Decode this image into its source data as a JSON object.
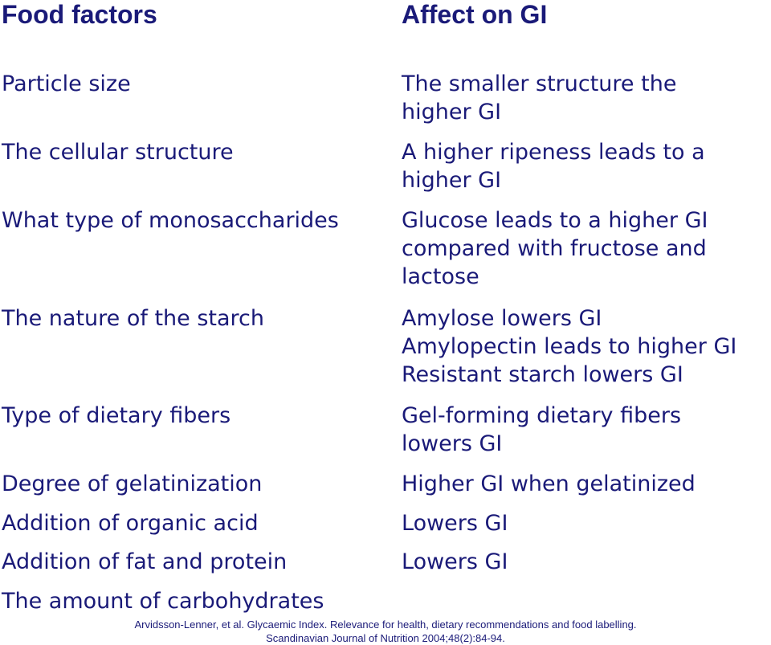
{
  "headers": {
    "left": "Food factors",
    "right": "Affect on GI"
  },
  "rows": [
    {
      "factor": "Particle size",
      "effect": [
        "The smaller structure the",
        "higher GI"
      ]
    },
    {
      "factor": "The cellular structure",
      "effect": [
        "A higher ripeness leads to a",
        "higher GI"
      ]
    },
    {
      "factor": "What type of monosaccharides",
      "effect": [
        "Glucose leads to a higher GI",
        "compared with fructose and",
        "lactose"
      ]
    },
    {
      "factor": "The nature of the starch",
      "effect": [
        "Amylose lowers GI",
        "Amylopectin leads to higher GI",
        "Resistant starch lowers GI"
      ]
    },
    {
      "factor": "Type of dietary fibers",
      "effect": [
        "Gel-forming dietary fibers",
        "lowers GI"
      ]
    },
    {
      "factor": "Degree of gelatinization",
      "effect": [
        "Higher GI when gelatinized"
      ]
    },
    {
      "factor": "Addition of organic acid",
      "effect": [
        "Lowers GI"
      ]
    },
    {
      "factor": "Addition of fat and protein",
      "effect": [
        "Lowers GI"
      ]
    },
    {
      "factor": "The amount of carbohydrates",
      "effect": []
    }
  ],
  "citation": {
    "line1": "Arvidsson-Lenner, et al. Glycaemic Index. Relevance for health, dietary recommendations and food labelling.",
    "line2": "Scandinavian Journal of Nutrition 2004;48(2):84-94."
  }
}
